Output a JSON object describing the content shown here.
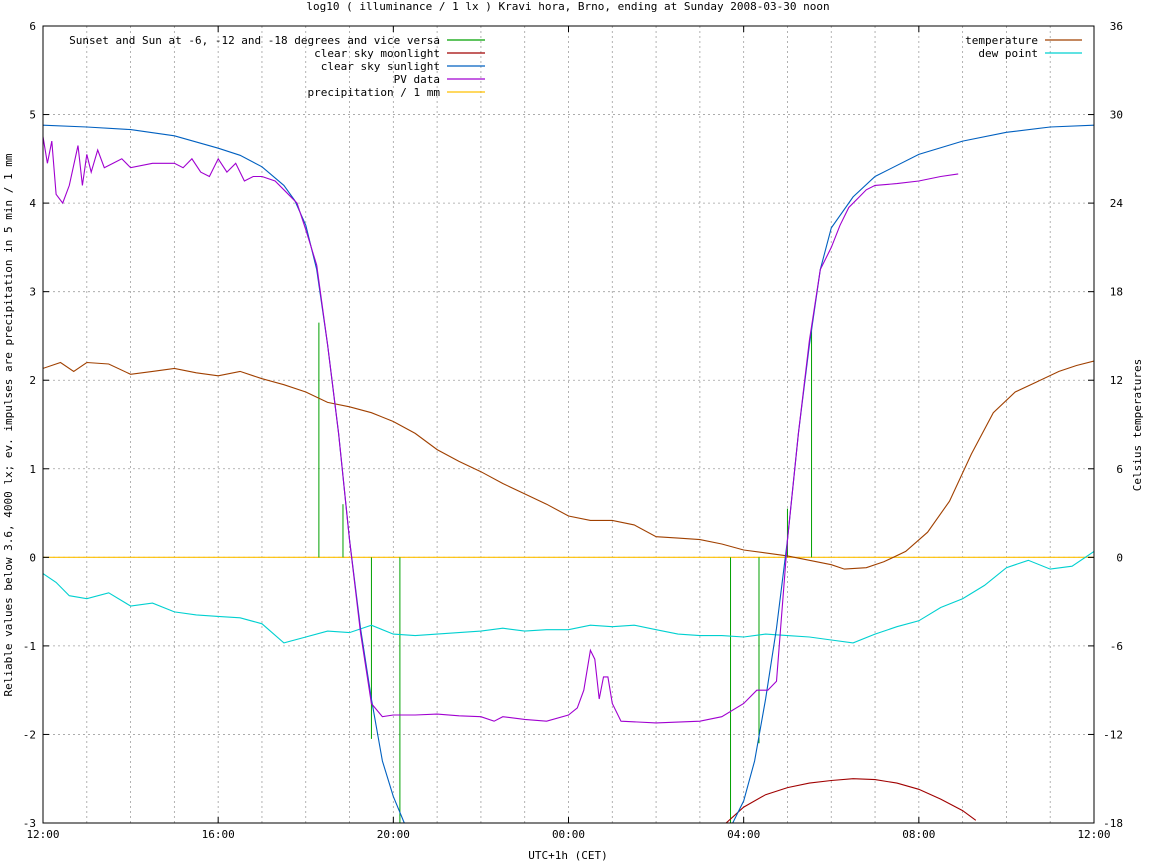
{
  "chart_data": {
    "type": "line",
    "title": "log10 ( illuminance / 1 lx ) Kravi hora, Brno, ending at Sunday 2008-03-30 noon",
    "xlabel": "UTC+1h (CET)",
    "ylabel": "Reliable values below 3.6, 4000 lx; ev. impulses are precipitation in 5 min / 1 mm",
    "y2label": "Celsius temperatures",
    "x_ticks": [
      "12:00",
      "16:00",
      "20:00",
      "00:00",
      "04:00",
      "08:00",
      "12:00"
    ],
    "xlim": [
      0,
      24
    ],
    "ylim": [
      -3,
      6
    ],
    "y2lim": [
      -18,
      36
    ],
    "y_ticks": [
      "-3",
      "-2",
      "-1",
      "0",
      "1",
      "2",
      "3",
      "4",
      "5",
      "6"
    ],
    "y2_ticks": [
      "-18",
      "-12",
      "-6",
      "0",
      "6",
      "12",
      "18",
      "24",
      "30",
      "36"
    ],
    "grid": true,
    "legend_left_position": "top-left",
    "legend_right_position": "top-right",
    "series": [
      {
        "name": "Sunset and Sun at -6, -12 and -18 degrees and vice versa",
        "color": "#00a000",
        "type": "impulses",
        "impulses": [
          [
            6.3,
            2.65
          ],
          [
            6.85,
            0.6
          ],
          [
            7.5,
            -2.05
          ],
          [
            8.15,
            -3
          ],
          [
            15.7,
            -3
          ],
          [
            16.35,
            -2.1
          ],
          [
            17.0,
            0.55
          ],
          [
            17.55,
            2.6
          ]
        ]
      },
      {
        "name": "clear sky moonlight",
        "color": "#a00000",
        "points": [
          [
            15.6,
            -3.0
          ],
          [
            16.0,
            -2.82
          ],
          [
            16.5,
            -2.68
          ],
          [
            17.0,
            -2.6
          ],
          [
            17.5,
            -2.55
          ],
          [
            18.0,
            -2.52
          ],
          [
            18.5,
            -2.5
          ],
          [
            19.0,
            -2.51
          ],
          [
            19.5,
            -2.55
          ],
          [
            20.0,
            -2.62
          ],
          [
            20.5,
            -2.73
          ],
          [
            21.0,
            -2.86
          ],
          [
            21.3,
            -2.97
          ]
        ]
      },
      {
        "name": "clear sky sunlight",
        "color": "#0060c0",
        "points": [
          [
            0,
            4.88
          ],
          [
            1,
            4.86
          ],
          [
            2,
            4.83
          ],
          [
            3,
            4.76
          ],
          [
            4,
            4.62
          ],
          [
            4.5,
            4.54
          ],
          [
            5,
            4.41
          ],
          [
            5.5,
            4.2
          ],
          [
            5.75,
            4.03
          ],
          [
            6.0,
            3.75
          ],
          [
            6.25,
            3.25
          ],
          [
            6.5,
            2.4
          ],
          [
            6.75,
            1.4
          ],
          [
            7.0,
            0.2
          ],
          [
            7.25,
            -0.8
          ],
          [
            7.5,
            -1.6
          ],
          [
            7.75,
            -2.3
          ],
          [
            8.0,
            -2.7
          ],
          [
            8.25,
            -3.0
          ],
          [
            15.75,
            -3.0
          ],
          [
            16.0,
            -2.75
          ],
          [
            16.25,
            -2.3
          ],
          [
            16.5,
            -1.6
          ],
          [
            16.75,
            -0.8
          ],
          [
            17.0,
            0.2
          ],
          [
            17.25,
            1.4
          ],
          [
            17.5,
            2.4
          ],
          [
            17.75,
            3.25
          ],
          [
            18.0,
            3.72
          ],
          [
            18.5,
            4.07
          ],
          [
            19.0,
            4.3
          ],
          [
            20.0,
            4.55
          ],
          [
            21.0,
            4.7
          ],
          [
            22.0,
            4.8
          ],
          [
            23.0,
            4.86
          ],
          [
            24.0,
            4.88
          ]
        ]
      },
      {
        "name": "PV data",
        "color": "#a000d0",
        "points": [
          [
            0,
            4.75
          ],
          [
            0.1,
            4.45
          ],
          [
            0.2,
            4.7
          ],
          [
            0.3,
            4.1
          ],
          [
            0.45,
            4.0
          ],
          [
            0.6,
            4.2
          ],
          [
            0.8,
            4.65
          ],
          [
            0.9,
            4.2
          ],
          [
            1.0,
            4.55
          ],
          [
            1.1,
            4.35
          ],
          [
            1.25,
            4.6
          ],
          [
            1.4,
            4.4
          ],
          [
            1.6,
            4.45
          ],
          [
            1.8,
            4.5
          ],
          [
            2.0,
            4.4
          ],
          [
            2.5,
            4.45
          ],
          [
            3.0,
            4.45
          ],
          [
            3.2,
            4.4
          ],
          [
            3.4,
            4.5
          ],
          [
            3.6,
            4.35
          ],
          [
            3.8,
            4.3
          ],
          [
            4.0,
            4.5
          ],
          [
            4.2,
            4.35
          ],
          [
            4.4,
            4.45
          ],
          [
            4.6,
            4.25
          ],
          [
            4.8,
            4.3
          ],
          [
            5.0,
            4.3
          ],
          [
            5.3,
            4.25
          ],
          [
            5.5,
            4.15
          ],
          [
            5.8,
            4.0
          ],
          [
            6.0,
            3.7
          ],
          [
            6.25,
            3.3
          ],
          [
            6.5,
            2.4
          ],
          [
            6.75,
            1.4
          ],
          [
            7.0,
            0.2
          ],
          [
            7.25,
            -0.85
          ],
          [
            7.5,
            -1.65
          ],
          [
            7.75,
            -1.8
          ],
          [
            8.0,
            -1.78
          ],
          [
            8.5,
            -1.78
          ],
          [
            9.0,
            -1.77
          ],
          [
            9.5,
            -1.79
          ],
          [
            10.0,
            -1.8
          ],
          [
            10.3,
            -1.85
          ],
          [
            10.5,
            -1.8
          ],
          [
            11.0,
            -1.83
          ],
          [
            11.5,
            -1.85
          ],
          [
            12.0,
            -1.78
          ],
          [
            12.2,
            -1.7
          ],
          [
            12.35,
            -1.5
          ],
          [
            12.5,
            -1.05
          ],
          [
            12.6,
            -1.15
          ],
          [
            12.7,
            -1.6
          ],
          [
            12.8,
            -1.35
          ],
          [
            12.9,
            -1.35
          ],
          [
            13.0,
            -1.65
          ],
          [
            13.2,
            -1.85
          ],
          [
            14.0,
            -1.87
          ],
          [
            15.0,
            -1.85
          ],
          [
            15.5,
            -1.8
          ],
          [
            16.0,
            -1.65
          ],
          [
            16.3,
            -1.5
          ],
          [
            16.55,
            -1.5
          ],
          [
            16.75,
            -1.4
          ],
          [
            17.0,
            0.2
          ],
          [
            17.25,
            1.4
          ],
          [
            17.5,
            2.45
          ],
          [
            17.75,
            3.25
          ],
          [
            18.0,
            3.5
          ],
          [
            18.2,
            3.75
          ],
          [
            18.4,
            3.95
          ],
          [
            18.6,
            4.05
          ],
          [
            18.8,
            4.15
          ],
          [
            19.0,
            4.2
          ],
          [
            19.5,
            4.22
          ],
          [
            20.0,
            4.25
          ],
          [
            20.5,
            4.3
          ],
          [
            20.9,
            4.33
          ]
        ]
      },
      {
        "name": "precipitation / 1 mm",
        "color": "#ffc000",
        "points": [
          [
            0,
            0
          ],
          [
            24,
            0
          ]
        ]
      },
      {
        "name": "temperature",
        "axis": "right",
        "color": "#a04000",
        "points": [
          [
            0,
            12.8
          ],
          [
            0.4,
            13.2
          ],
          [
            0.7,
            12.6
          ],
          [
            1.0,
            13.2
          ],
          [
            1.5,
            13.1
          ],
          [
            2.0,
            12.4
          ],
          [
            2.5,
            12.6
          ],
          [
            3.0,
            12.8
          ],
          [
            3.5,
            12.5
          ],
          [
            4.0,
            12.3
          ],
          [
            4.5,
            12.6
          ],
          [
            5.0,
            12.1
          ],
          [
            5.5,
            11.7
          ],
          [
            6.0,
            11.2
          ],
          [
            6.5,
            10.5
          ],
          [
            7.0,
            10.2
          ],
          [
            7.5,
            9.8
          ],
          [
            8.0,
            9.2
          ],
          [
            8.5,
            8.4
          ],
          [
            9.0,
            7.3
          ],
          [
            9.5,
            6.5
          ],
          [
            10.0,
            5.8
          ],
          [
            10.5,
            5.0
          ],
          [
            11.0,
            4.3
          ],
          [
            11.5,
            3.6
          ],
          [
            12.0,
            2.8
          ],
          [
            12.5,
            2.5
          ],
          [
            13.0,
            2.5
          ],
          [
            13.5,
            2.2
          ],
          [
            14.0,
            1.4
          ],
          [
            14.5,
            1.3
          ],
          [
            15.0,
            1.2
          ],
          [
            15.5,
            0.9
          ],
          [
            16.0,
            0.5
          ],
          [
            16.5,
            0.3
          ],
          [
            17.0,
            0.1
          ],
          [
            17.5,
            -0.2
          ],
          [
            18.0,
            -0.5
          ],
          [
            18.3,
            -0.8
          ],
          [
            18.8,
            -0.7
          ],
          [
            19.2,
            -0.3
          ],
          [
            19.7,
            0.4
          ],
          [
            20.2,
            1.7
          ],
          [
            20.7,
            3.8
          ],
          [
            21.2,
            7.0
          ],
          [
            21.7,
            9.8
          ],
          [
            22.2,
            11.2
          ],
          [
            22.7,
            11.9
          ],
          [
            23.2,
            12.6
          ],
          [
            23.6,
            13.0
          ],
          [
            24.0,
            13.3
          ]
        ]
      },
      {
        "name": "dew point",
        "axis": "right",
        "color": "#00d0d0",
        "points": [
          [
            0,
            -1.1
          ],
          [
            0.3,
            -1.7
          ],
          [
            0.6,
            -2.6
          ],
          [
            1.0,
            -2.8
          ],
          [
            1.5,
            -2.4
          ],
          [
            2.0,
            -3.3
          ],
          [
            2.5,
            -3.1
          ],
          [
            3.0,
            -3.7
          ],
          [
            3.5,
            -3.9
          ],
          [
            4.0,
            -4.0
          ],
          [
            4.5,
            -4.1
          ],
          [
            5.0,
            -4.5
          ],
          [
            5.5,
            -5.8
          ],
          [
            6.0,
            -5.4
          ],
          [
            6.5,
            -5.0
          ],
          [
            7.0,
            -5.1
          ],
          [
            7.5,
            -4.6
          ],
          [
            8.0,
            -5.2
          ],
          [
            8.5,
            -5.3
          ],
          [
            9.0,
            -5.2
          ],
          [
            9.5,
            -5.1
          ],
          [
            10.0,
            -5.0
          ],
          [
            10.5,
            -4.8
          ],
          [
            11.0,
            -5.0
          ],
          [
            11.5,
            -4.9
          ],
          [
            12.0,
            -4.9
          ],
          [
            12.5,
            -4.6
          ],
          [
            13.0,
            -4.7
          ],
          [
            13.5,
            -4.6
          ],
          [
            14.0,
            -4.9
          ],
          [
            14.5,
            -5.2
          ],
          [
            15.0,
            -5.3
          ],
          [
            15.5,
            -5.3
          ],
          [
            16.0,
            -5.4
          ],
          [
            16.5,
            -5.2
          ],
          [
            17.0,
            -5.3
          ],
          [
            17.5,
            -5.4
          ],
          [
            18.0,
            -5.6
          ],
          [
            18.5,
            -5.8
          ],
          [
            19.0,
            -5.2
          ],
          [
            19.5,
            -4.7
          ],
          [
            20.0,
            -4.3
          ],
          [
            20.5,
            -3.4
          ],
          [
            21.0,
            -2.8
          ],
          [
            21.5,
            -1.9
          ],
          [
            22.0,
            -0.7
          ],
          [
            22.5,
            -0.2
          ],
          [
            23.0,
            -0.8
          ],
          [
            23.5,
            -0.6
          ],
          [
            24.0,
            0.4
          ]
        ]
      }
    ]
  }
}
